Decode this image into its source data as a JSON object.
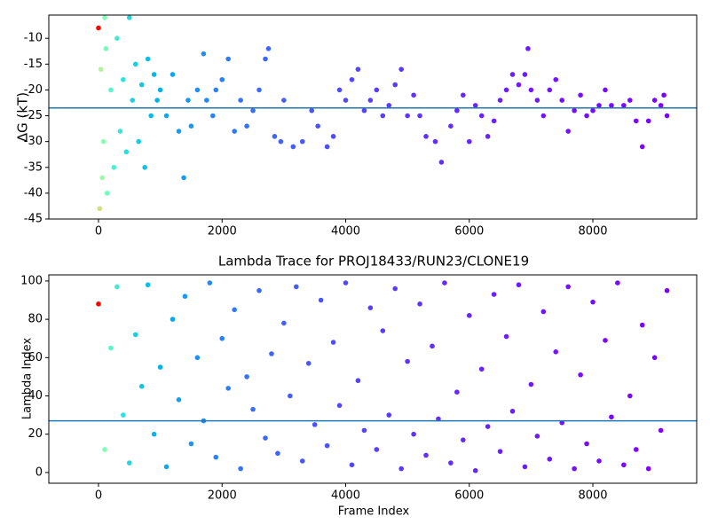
{
  "chart_data": [
    {
      "type": "scatter",
      "ylabel": "ΔG (kT)",
      "colormap": "rainbow_r",
      "x": [
        0,
        20,
        40,
        60,
        80,
        100,
        120,
        140,
        200,
        250,
        300,
        350,
        400,
        450,
        500,
        550,
        600,
        650,
        700,
        750,
        800,
        850,
        900,
        950,
        1000,
        1100,
        1200,
        1300,
        1380,
        1450,
        1500,
        1600,
        1700,
        1750,
        1850,
        1900,
        2000,
        2100,
        2200,
        2300,
        2400,
        2500,
        2600,
        2700,
        2750,
        2850,
        2950,
        3000,
        3150,
        3300,
        3450,
        3550,
        3700,
        3800,
        3900,
        4000,
        4100,
        4200,
        4300,
        4400,
        4500,
        4600,
        4700,
        4800,
        4900,
        5000,
        5100,
        5200,
        5300,
        5450,
        5550,
        5700,
        5800,
        5900,
        6000,
        6100,
        6200,
        6300,
        6400,
        6500,
        6600,
        6700,
        6800,
        6900,
        6950,
        7000,
        7100,
        7200,
        7300,
        7400,
        7500,
        7600,
        7700,
        7800,
        7900,
        8000,
        8100,
        8200,
        8300,
        8500,
        8600,
        8700,
        8800,
        8900,
        9000,
        9100,
        9150,
        9200
      ],
      "values": [
        -8,
        -43,
        -16,
        -37,
        -30,
        -6,
        -12,
        -40,
        -20,
        -35,
        -10,
        -28,
        -18,
        -32,
        -6,
        -22,
        -15,
        -30,
        -19,
        -35,
        -14,
        -25,
        -17,
        -22,
        -20,
        -25,
        -17,
        -28,
        -37,
        -22,
        -27,
        -20,
        -13,
        -22,
        -25,
        -20,
        -18,
        -14,
        -28,
        -22,
        -27,
        -24,
        -20,
        -14,
        -12,
        -29,
        -30,
        -22,
        -31,
        -30,
        -24,
        -27,
        -31,
        -29,
        -20,
        -22,
        -18,
        -16,
        -24,
        -22,
        -20,
        -25,
        -23,
        -19,
        -16,
        -25,
        -21,
        -25,
        -29,
        -30,
        -34,
        -27,
        -24,
        -21,
        -30,
        -23,
        -25,
        -29,
        -26,
        -22,
        -20,
        -17,
        -19,
        -17,
        -12,
        -20,
        -22,
        -25,
        -20,
        -18,
        -22,
        -28,
        -24,
        -21,
        -25,
        -24,
        -23,
        -20,
        -23,
        -23,
        -22,
        -26,
        -31,
        -26,
        -22,
        -23,
        -21,
        -25
      ],
      "hline": -23.5,
      "hline_color": "#1f77b4",
      "xlim": [
        -804,
        9680
      ],
      "xticks": [
        0,
        2000,
        4000,
        6000,
        8000
      ],
      "ylim": [
        -45,
        -5.5
      ],
      "yticks": [
        -45,
        -40,
        -35,
        -30,
        -25,
        -20,
        -15,
        -10
      ]
    },
    {
      "type": "scatter",
      "title": "Lambda Trace for PROJ18433/RUN23/CLONE19",
      "xlabel": "Frame Index",
      "ylabel": "Lambda Index",
      "colormap": "rainbow_r",
      "x": [
        0,
        100,
        200,
        300,
        400,
        500,
        600,
        700,
        800,
        900,
        1000,
        1100,
        1200,
        1300,
        1400,
        1500,
        1600,
        1700,
        1800,
        1900,
        2000,
        2100,
        2200,
        2300,
        2400,
        2500,
        2600,
        2700,
        2800,
        2900,
        3000,
        3100,
        3200,
        3300,
        3400,
        3500,
        3600,
        3700,
        3800,
        3900,
        4000,
        4100,
        4200,
        4300,
        4400,
        4500,
        4600,
        4700,
        4800,
        4900,
        5000,
        5100,
        5200,
        5300,
        5400,
        5500,
        5600,
        5700,
        5800,
        5900,
        6000,
        6100,
        6200,
        6300,
        6400,
        6500,
        6600,
        6700,
        6800,
        6900,
        7000,
        7100,
        7200,
        7300,
        7400,
        7500,
        7600,
        7700,
        7800,
        7900,
        8000,
        8100,
        8200,
        8300,
        8400,
        8500,
        8600,
        8700,
        8800,
        8900,
        9000,
        9100,
        9200
      ],
      "values": [
        88,
        12,
        65,
        97,
        30,
        5,
        72,
        45,
        98,
        20,
        55,
        3,
        80,
        38,
        92,
        15,
        60,
        27,
        99,
        8,
        70,
        44,
        85,
        2,
        50,
        33,
        95,
        18,
        62,
        10,
        78,
        40,
        97,
        6,
        57,
        25,
        90,
        14,
        68,
        35,
        99,
        4,
        48,
        22,
        86,
        12,
        74,
        30,
        96,
        2,
        58,
        20,
        88,
        9,
        66,
        28,
        99,
        5,
        42,
        17,
        82,
        1,
        54,
        24,
        93,
        11,
        71,
        32,
        98,
        3,
        46,
        19,
        84,
        7,
        63,
        26,
        97,
        2,
        51,
        15,
        89,
        6,
        69,
        29,
        99,
        4,
        40,
        12,
        77,
        2,
        60,
        22,
        95
      ],
      "hline": 27,
      "hline_color": "#1f77b4",
      "xlim": [
        -804,
        9680
      ],
      "xticks": [
        0,
        2000,
        4000,
        6000,
        8000
      ],
      "ylim": [
        -5.6,
        103.2
      ],
      "yticks": [
        0,
        20,
        40,
        60,
        80,
        100
      ]
    }
  ]
}
